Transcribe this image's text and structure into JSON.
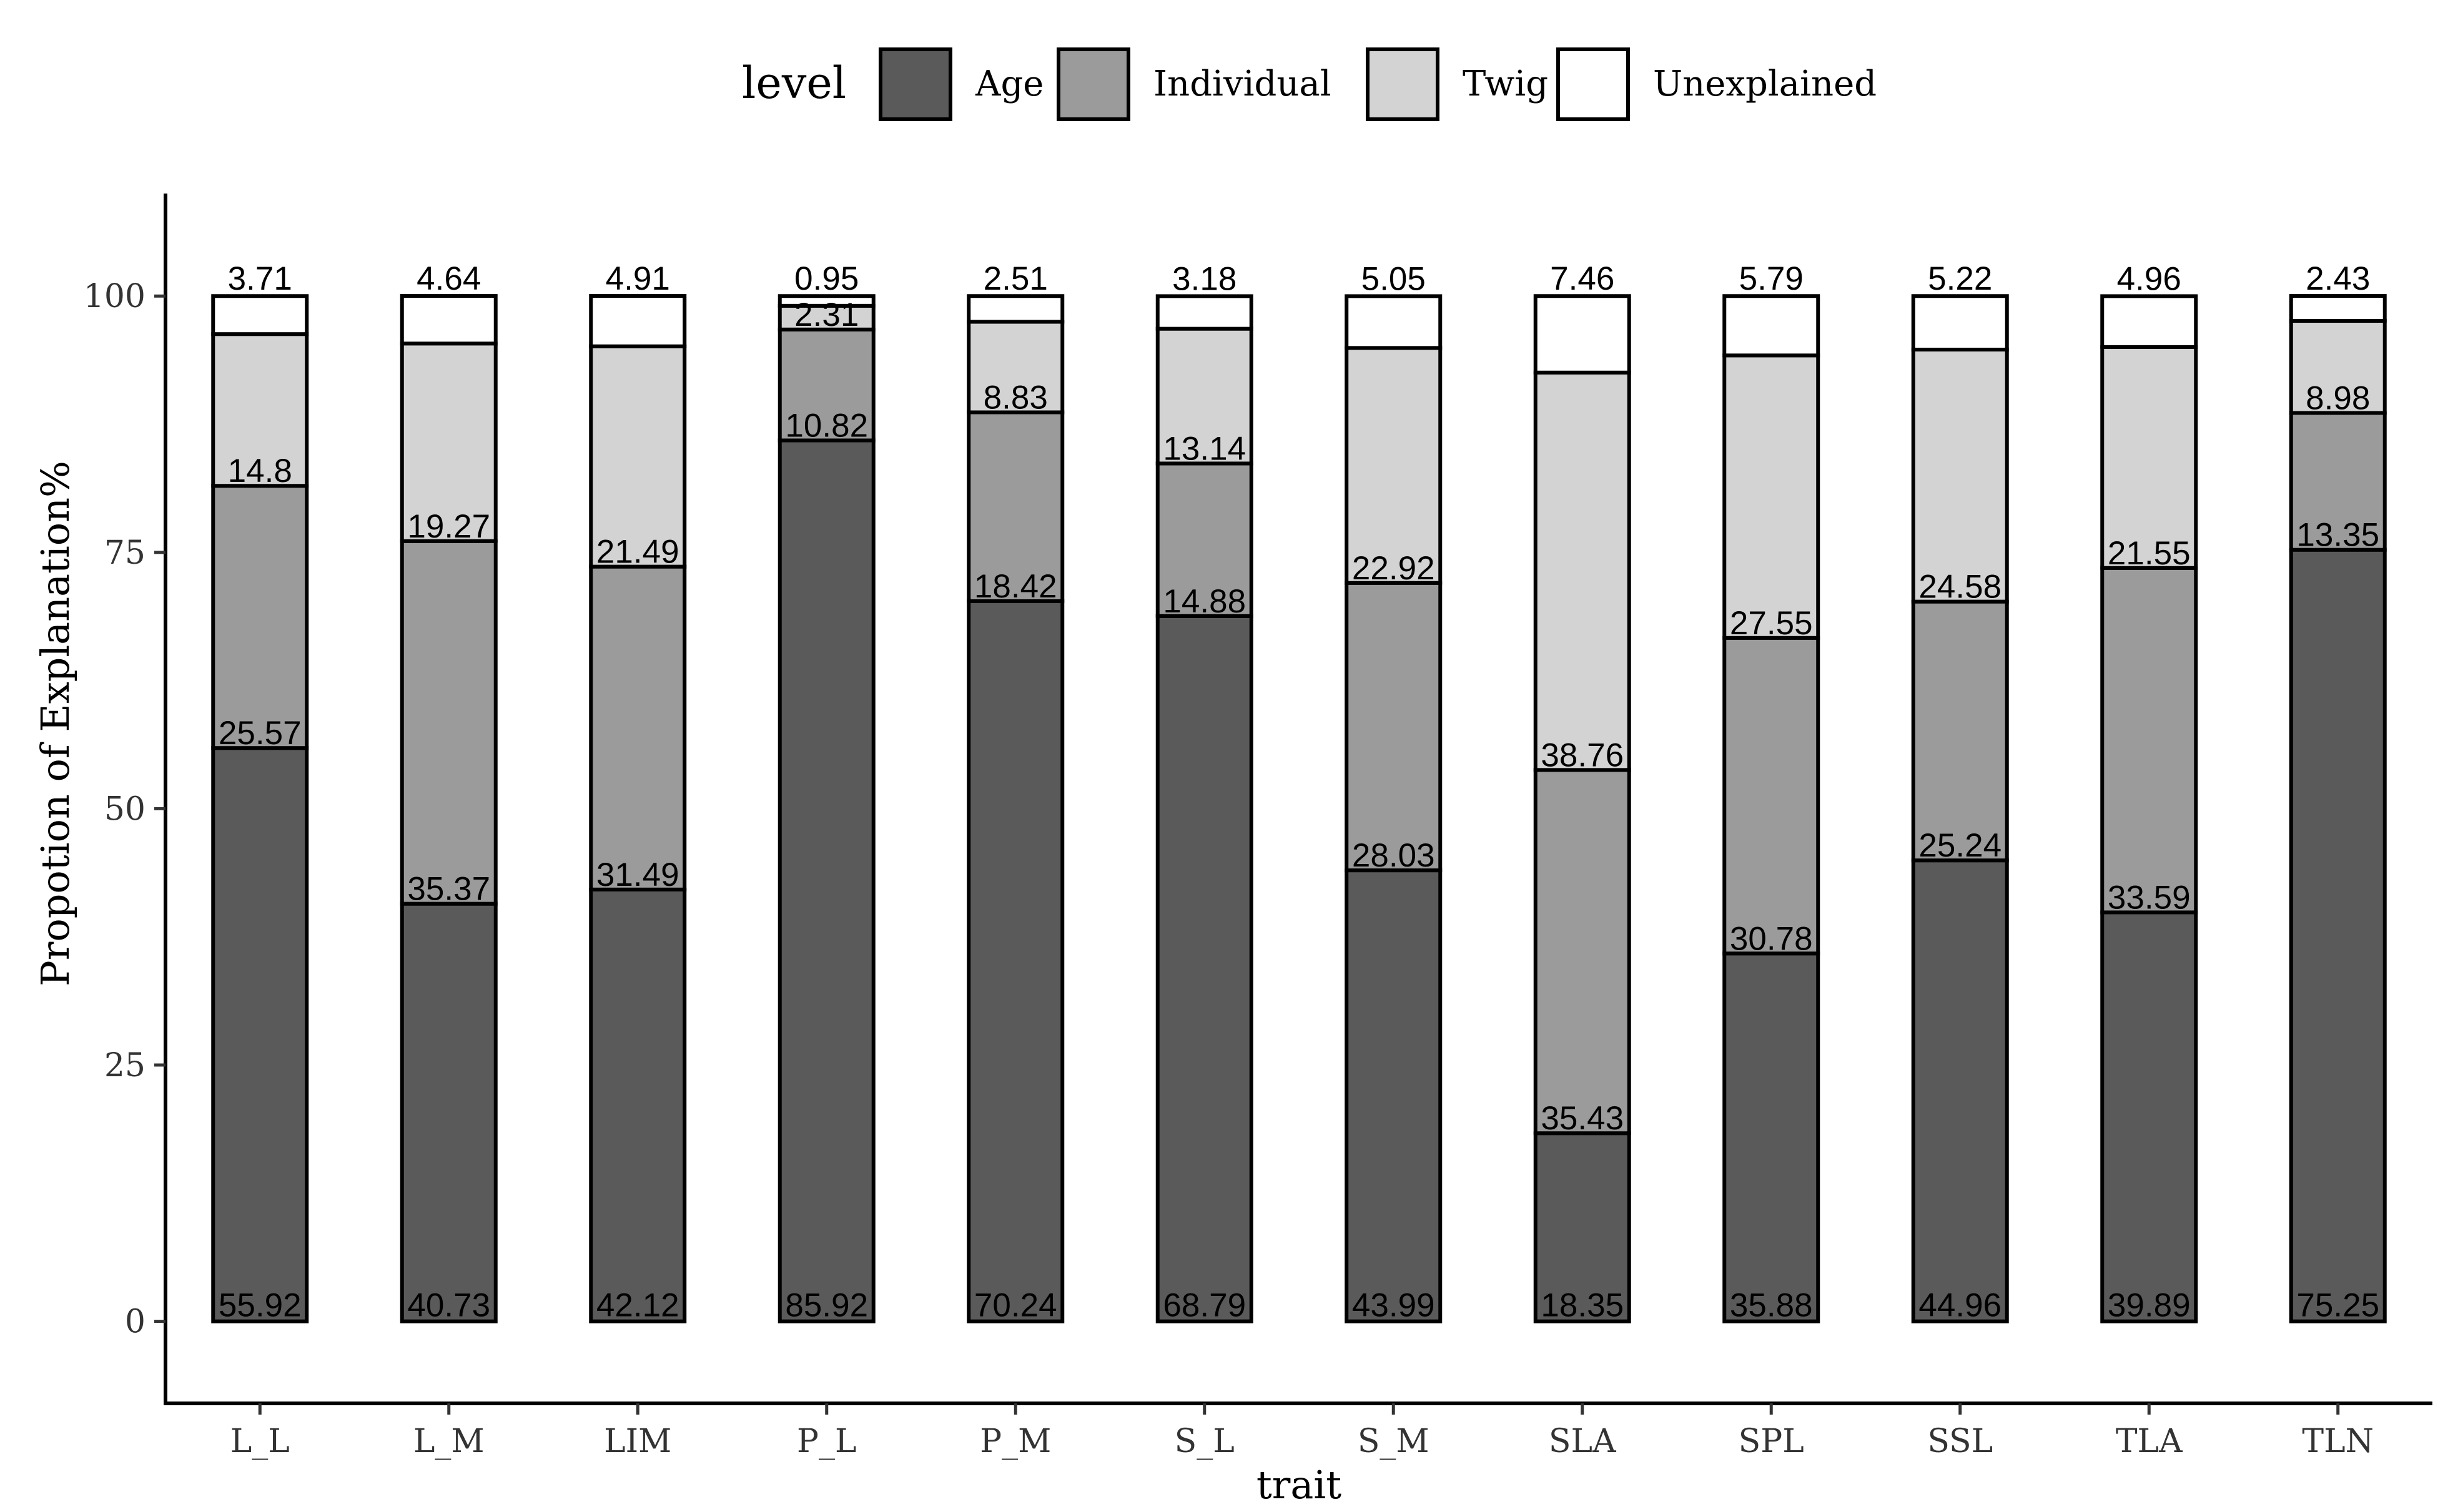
{
  "chart_data": {
    "type": "bar",
    "stacked": true,
    "title": "",
    "xlabel": "trait",
    "ylabel": "Propotion of Explanation%",
    "ylim": [
      -8,
      110
    ],
    "yticks": [
      0,
      25,
      50,
      75,
      100
    ],
    "legend": {
      "title": "level",
      "position": "top-center"
    },
    "categories": [
      "L_L",
      "L_M",
      "LIM",
      "P_L",
      "P_M",
      "S_L",
      "S_M",
      "SLA",
      "SPL",
      "SSL",
      "TLA",
      "TLN"
    ],
    "series": [
      {
        "name": "Age",
        "color": "#5a5a5a",
        "values": [
          55.92,
          40.73,
          42.12,
          85.92,
          70.24,
          68.79,
          43.99,
          18.35,
          35.88,
          44.96,
          39.89,
          75.25
        ],
        "labels": [
          "55.92",
          "40.73",
          "42.12",
          "85.92",
          "70.24",
          "68.79",
          "43.99",
          "18.35",
          "35.88",
          "44.96",
          "39.89",
          "75.25"
        ]
      },
      {
        "name": "Individual",
        "color": "#9b9b9b",
        "values": [
          25.57,
          35.37,
          31.49,
          10.82,
          18.42,
          14.88,
          28.03,
          35.43,
          30.78,
          25.24,
          33.59,
          13.35
        ],
        "labels": [
          "25.57",
          "35.37",
          "31.49",
          "10.82",
          "18.42",
          "14.88",
          "28.03",
          "35.43",
          "30.78",
          "25.24",
          "33.59",
          "13.35"
        ]
      },
      {
        "name": "Twig",
        "color": "#d3d3d3",
        "values": [
          14.8,
          19.27,
          21.49,
          2.31,
          8.83,
          13.14,
          22.92,
          38.76,
          27.55,
          24.58,
          21.55,
          8.98
        ],
        "labels": [
          "14.8",
          "19.27",
          "21.49",
          "2.31",
          "8.83",
          "13.14",
          "22.92",
          "38.76",
          "27.55",
          "24.58",
          "21.55",
          "8.98"
        ]
      },
      {
        "name": "Unexplained",
        "color": "#ffffff",
        "values": [
          3.71,
          4.64,
          4.91,
          0.95,
          2.51,
          3.18,
          5.05,
          7.46,
          5.79,
          5.22,
          4.96,
          2.43
        ],
        "labels": [
          "3.71",
          "4.64",
          "4.91",
          "0.95",
          "2.51",
          "3.18",
          "5.05",
          "7.46",
          "5.79",
          "5.22",
          "4.96",
          "2.43"
        ]
      }
    ]
  }
}
